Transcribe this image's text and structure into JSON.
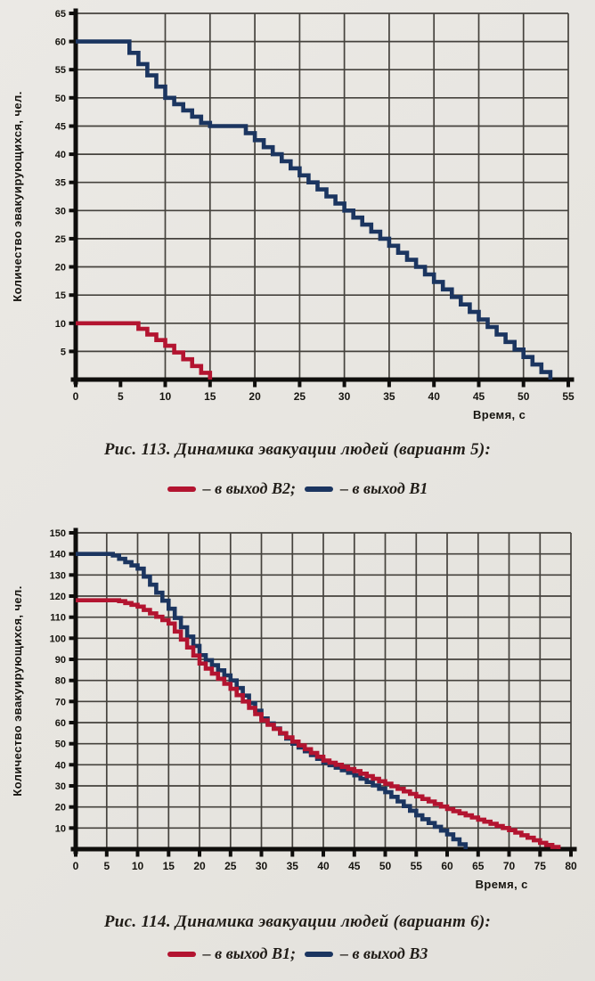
{
  "page": {
    "background": "#e8e6e1",
    "grid_color": "#45423d",
    "axis_color": "#0f0e0c",
    "text_color": "#16140f"
  },
  "figures": [
    {
      "caption": "Рис. 113. Динамика эвакуации людей (вариант 5):",
      "legend": [
        {
          "label": "– в выход В2;",
          "color": "#b31430"
        },
        {
          "label": "– в выход В1",
          "color": "#1b3560"
        }
      ]
    },
    {
      "caption": "Рис. 114. Динамика эвакуации людей (вариант 6):",
      "legend": [
        {
          "label": "– в выход В1;",
          "color": "#b31430"
        },
        {
          "label": "– в выход В3",
          "color": "#1b3560"
        }
      ]
    }
  ],
  "chart_data": [
    {
      "type": "line",
      "line_style": "step",
      "title": "",
      "xlabel": "Время, с",
      "ylabel": "Количество эвакуирующихся, чел.",
      "xlim": [
        0,
        55
      ],
      "ylim": [
        0,
        65
      ],
      "xticks": [
        0,
        5,
        10,
        15,
        20,
        25,
        30,
        35,
        40,
        45,
        50,
        55
      ],
      "yticks": [
        5,
        10,
        15,
        20,
        25,
        30,
        35,
        40,
        45,
        50,
        55,
        60,
        65
      ],
      "grid_x": [
        10,
        15,
        20,
        25,
        30,
        35,
        40,
        45,
        50,
        55
      ],
      "grid_y": [
        5,
        10,
        15,
        20,
        25,
        30,
        35,
        40,
        45,
        50,
        55,
        60,
        65
      ],
      "grid_on": true,
      "legend_position": "below",
      "series": [
        {
          "name": "в выход В1",
          "color": "#1b3560",
          "points": [
            [
              0,
              60
            ],
            [
              5,
              60
            ],
            [
              10,
              50
            ],
            [
              14.5,
              45
            ],
            [
              18,
              45
            ],
            [
              38,
              20
            ],
            [
              45.5,
              10
            ],
            [
              53,
              0
            ]
          ]
        },
        {
          "name": "в выход В2",
          "color": "#b31430",
          "points": [
            [
              0,
              10
            ],
            [
              6,
              10
            ],
            [
              10,
              6
            ],
            [
              15,
              0
            ]
          ]
        }
      ]
    },
    {
      "type": "line",
      "line_style": "step",
      "title": "",
      "xlabel": "Время, с",
      "ylabel": "Количество эвакуирующихся, чел.",
      "xlim": [
        0,
        80
      ],
      "ylim": [
        0,
        150
      ],
      "xticks": [
        0,
        5,
        10,
        15,
        20,
        25,
        30,
        35,
        40,
        45,
        50,
        55,
        60,
        65,
        70,
        75,
        80
      ],
      "yticks": [
        10,
        20,
        30,
        40,
        50,
        60,
        70,
        80,
        90,
        100,
        110,
        120,
        130,
        140,
        150
      ],
      "grid_x": [
        5,
        10,
        15,
        20,
        25,
        30,
        35,
        40,
        45,
        50,
        55,
        60,
        65,
        70,
        75,
        80
      ],
      "grid_y": [
        10,
        20,
        30,
        40,
        50,
        60,
        70,
        80,
        90,
        100,
        110,
        120,
        130,
        140,
        150
      ],
      "grid_on": true,
      "legend_position": "below",
      "series": [
        {
          "name": "в выход В3",
          "color": "#1b3560",
          "points": [
            [
              0,
              140
            ],
            [
              5.5,
              140
            ],
            [
              10,
              133
            ],
            [
              15,
              114
            ],
            [
              20,
              92
            ],
            [
              25,
              80
            ],
            [
              30,
              62
            ],
            [
              35,
              50
            ],
            [
              40,
              41
            ],
            [
              45,
              35
            ],
            [
              50,
              27
            ],
            [
              55,
              16
            ],
            [
              60,
              7
            ],
            [
              63,
              0
            ]
          ]
        },
        {
          "name": "в выход В1",
          "color": "#b31430",
          "points": [
            [
              0,
              118
            ],
            [
              6.5,
              118
            ],
            [
              10,
              115
            ],
            [
              15,
              107
            ],
            [
              20,
              88
            ],
            [
              25,
              76
            ],
            [
              30,
              61
            ],
            [
              35,
              51
            ],
            [
              40,
              42
            ],
            [
              45,
              37
            ],
            [
              50,
              31
            ],
            [
              55,
              25
            ],
            [
              60,
              19
            ],
            [
              65,
              14
            ],
            [
              70,
              9
            ],
            [
              75,
              3
            ],
            [
              78,
              0
            ]
          ]
        }
      ]
    }
  ]
}
